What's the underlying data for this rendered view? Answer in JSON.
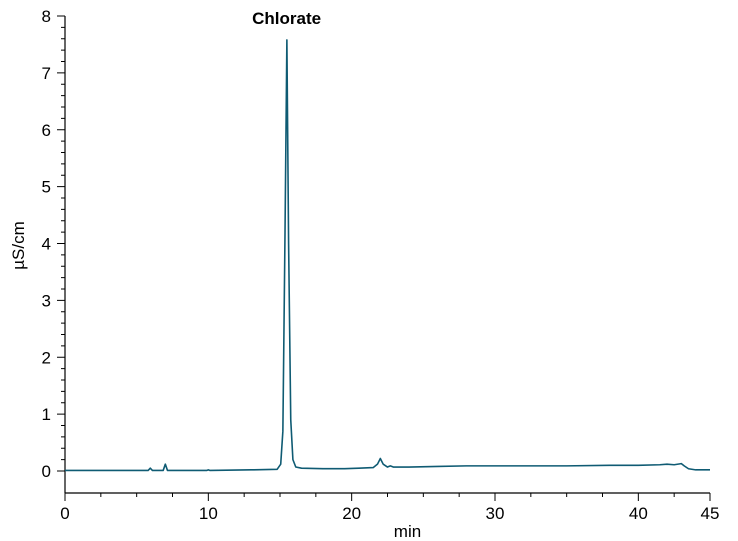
{
  "chart_data": {
    "type": "line",
    "title": "",
    "xlabel": "min",
    "ylabel": "µS/cm",
    "xlim": [
      0,
      45
    ],
    "ylim": [
      0,
      8
    ],
    "x_ticks": [
      0,
      10,
      20,
      30,
      40,
      45
    ],
    "x_tick_labels": [
      "0",
      "10",
      "20",
      "30",
      "40",
      "45"
    ],
    "y_ticks": [
      0,
      1,
      2,
      3,
      4,
      5,
      6,
      7,
      8
    ],
    "y_tick_labels": [
      "0",
      "1",
      "2",
      "3",
      "4",
      "5",
      "6",
      "7",
      "8"
    ],
    "grid": false,
    "legend": "none",
    "line_color": "#0f5b73",
    "annotations": [
      {
        "text": "Chlorate",
        "x": 15.6,
        "y": 7.58
      }
    ],
    "series": [
      {
        "color": "#0f5b73",
        "points": [
          [
            0,
            0.01
          ],
          [
            2,
            0.01
          ],
          [
            5.8,
            0.01
          ],
          [
            5.95,
            0.05
          ],
          [
            6.1,
            0.01
          ],
          [
            6.85,
            0.01
          ],
          [
            7.0,
            0.12
          ],
          [
            7.15,
            0.01
          ],
          [
            9.9,
            0.01
          ],
          [
            10.0,
            0.02
          ],
          [
            10.1,
            0.01
          ],
          [
            13.0,
            0.02
          ],
          [
            14.8,
            0.03
          ],
          [
            15.05,
            0.12
          ],
          [
            15.2,
            0.7
          ],
          [
            15.35,
            4.2
          ],
          [
            15.48,
            7.58
          ],
          [
            15.6,
            4.0
          ],
          [
            15.75,
            0.9
          ],
          [
            15.9,
            0.2
          ],
          [
            16.1,
            0.07
          ],
          [
            16.5,
            0.05
          ],
          [
            18.0,
            0.04
          ],
          [
            19.5,
            0.04
          ],
          [
            20.5,
            0.05
          ],
          [
            21.5,
            0.06
          ],
          [
            21.8,
            0.12
          ],
          [
            22.0,
            0.22
          ],
          [
            22.2,
            0.12
          ],
          [
            22.5,
            0.07
          ],
          [
            22.7,
            0.09
          ],
          [
            22.9,
            0.07
          ],
          [
            24.0,
            0.07
          ],
          [
            26.0,
            0.08
          ],
          [
            28.0,
            0.09
          ],
          [
            30.0,
            0.09
          ],
          [
            32.0,
            0.09
          ],
          [
            35.0,
            0.09
          ],
          [
            38.0,
            0.1
          ],
          [
            40.0,
            0.1
          ],
          [
            41.5,
            0.11
          ],
          [
            42.0,
            0.12
          ],
          [
            42.5,
            0.11
          ],
          [
            43.0,
            0.13
          ],
          [
            43.2,
            0.09
          ],
          [
            43.5,
            0.04
          ],
          [
            44.0,
            0.02
          ],
          [
            45.0,
            0.02
          ]
        ]
      }
    ]
  }
}
